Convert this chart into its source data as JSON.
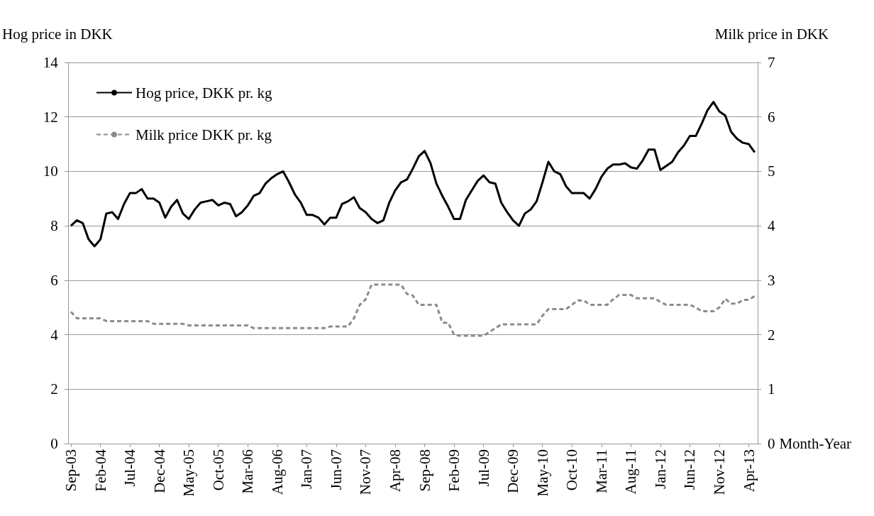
{
  "chart_data": {
    "type": "line",
    "xlabel": "Month-Year",
    "ylabel": "Hog price in DKK",
    "y2label": "Milk price in DKK",
    "categories": [
      "Sep-03",
      null,
      null,
      null,
      null,
      "Feb-04",
      null,
      null,
      null,
      null,
      "Jul-04",
      null,
      null,
      null,
      null,
      "Dec-04",
      null,
      null,
      null,
      null,
      "May-05",
      null,
      null,
      null,
      null,
      "Oct-05",
      null,
      null,
      null,
      null,
      "Mar-06",
      null,
      null,
      null,
      null,
      "Aug-06",
      null,
      null,
      null,
      null,
      "Jan-07",
      null,
      null,
      null,
      null,
      "Jun-07",
      null,
      null,
      null,
      null,
      "Nov-07",
      null,
      null,
      null,
      null,
      "Apr-08",
      null,
      null,
      null,
      null,
      "Sep-08",
      null,
      null,
      null,
      null,
      "Feb-09",
      null,
      null,
      null,
      null,
      "Jul-09",
      null,
      null,
      null,
      null,
      "Dec-09",
      null,
      null,
      null,
      null,
      "May-10",
      null,
      null,
      null,
      null,
      "Oct-10",
      null,
      null,
      null,
      null,
      "Mar-11",
      null,
      null,
      null,
      null,
      "Aug-11",
      null,
      null,
      null,
      null,
      "Jan-12",
      null,
      null,
      null,
      null,
      "Jun-12",
      null,
      null,
      null,
      null,
      "Nov-12",
      null,
      null,
      null,
      null,
      "Apr-13",
      null
    ],
    "series": [
      {
        "name": "Hog price, DKK pr. kg",
        "color": "#000000",
        "line_style": "solid",
        "values": [
          8.0,
          8.2,
          8.1,
          7.5,
          7.25,
          7.5,
          8.45,
          8.5,
          8.25,
          8.8,
          9.2,
          9.2,
          9.35,
          9.0,
          9.0,
          8.85,
          8.3,
          8.7,
          8.95,
          8.45,
          8.25,
          8.6,
          8.85,
          8.9,
          8.95,
          8.75,
          8.85,
          8.8,
          8.35,
          8.5,
          8.75,
          9.1,
          9.2,
          9.55,
          9.75,
          9.9,
          10.0,
          9.6,
          9.15,
          8.85,
          8.4,
          8.4,
          8.3,
          8.05,
          8.3,
          8.3,
          8.8,
          8.9,
          9.05,
          8.65,
          8.5,
          8.25,
          8.1,
          8.2,
          8.85,
          9.3,
          9.6,
          9.7,
          10.1,
          10.55,
          10.75,
          10.3,
          9.55,
          9.1,
          8.7,
          8.25,
          8.25,
          8.95,
          9.3,
          9.65,
          9.85,
          9.6,
          9.55,
          8.85,
          8.5,
          8.2,
          8.0,
          8.45,
          8.6,
          8.9,
          9.6,
          10.35,
          10.0,
          9.9,
          9.45,
          9.2,
          9.2,
          9.2,
          9.0,
          9.35,
          9.8,
          10.1,
          10.25,
          10.25,
          10.3,
          10.15,
          10.1,
          10.4,
          10.8,
          10.8,
          10.05,
          10.2,
          10.35,
          10.7,
          10.95,
          11.3,
          11.3,
          11.75,
          12.25,
          12.55,
          12.2,
          12.05,
          11.45,
          11.2,
          11.05,
          11.0,
          10.7
        ]
      },
      {
        "name": "Milk price DKK pr. kg",
        "color": "#8c8c8c",
        "line_style": "dashed",
        "axis": "y2",
        "values": [
          2.42,
          2.3,
          2.3,
          2.3,
          2.3,
          2.3,
          2.25,
          2.25,
          2.25,
          2.25,
          2.25,
          2.25,
          2.25,
          2.25,
          2.2,
          2.2,
          2.2,
          2.2,
          2.2,
          2.2,
          2.17,
          2.17,
          2.17,
          2.17,
          2.17,
          2.17,
          2.17,
          2.17,
          2.17,
          2.17,
          2.17,
          2.12,
          2.12,
          2.12,
          2.12,
          2.12,
          2.12,
          2.12,
          2.12,
          2.12,
          2.12,
          2.12,
          2.12,
          2.12,
          2.15,
          2.15,
          2.15,
          2.15,
          2.3,
          2.55,
          2.65,
          2.92,
          2.92,
          2.92,
          2.92,
          2.92,
          2.92,
          2.75,
          2.72,
          2.55,
          2.55,
          2.55,
          2.55,
          2.22,
          2.22,
          2.0,
          1.98,
          1.98,
          1.98,
          1.98,
          1.98,
          2.05,
          2.12,
          2.19,
          2.19,
          2.19,
          2.19,
          2.19,
          2.19,
          2.19,
          2.35,
          2.47,
          2.47,
          2.47,
          2.47,
          2.55,
          2.63,
          2.63,
          2.55,
          2.55,
          2.55,
          2.55,
          2.65,
          2.73,
          2.73,
          2.73,
          2.67,
          2.67,
          2.67,
          2.67,
          2.6,
          2.55,
          2.55,
          2.55,
          2.55,
          2.55,
          2.5,
          2.43,
          2.43,
          2.43,
          2.5,
          2.66,
          2.57,
          2.57,
          2.64,
          2.64,
          2.71
        ]
      }
    ],
    "ylim": [
      0,
      14
    ],
    "yticks": [
      0,
      2,
      4,
      6,
      8,
      10,
      12,
      14
    ],
    "y2lim": [
      0,
      7
    ],
    "y2ticks": [
      0,
      1,
      2,
      3,
      4,
      5,
      6,
      7
    ],
    "grid": "y",
    "legend": "top left",
    "marker": "none"
  }
}
